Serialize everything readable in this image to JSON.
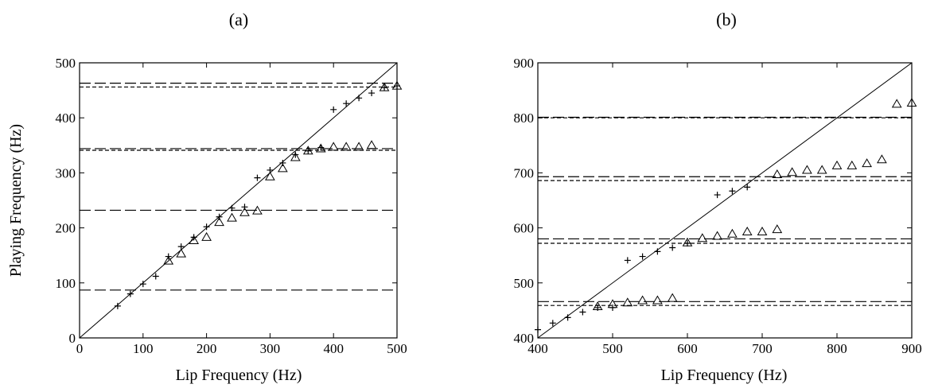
{
  "chart_data": [
    {
      "type": "scatter",
      "title": "(a)",
      "xlabel": "Lip Frequency (Hz)",
      "ylabel": "Playing  Frequency (Hz)",
      "xlim": [
        0,
        500
      ],
      "ylim": [
        0,
        500
      ],
      "xticks": [
        0,
        100,
        200,
        300,
        400,
        500
      ],
      "yticks": [
        0,
        100,
        200,
        300,
        400,
        500
      ],
      "grid": false,
      "reference_line": {
        "style": "solid",
        "from": [
          0,
          0
        ],
        "to": [
          500,
          500
        ]
      },
      "hlines": [
        {
          "y": 463,
          "style": "long-dash"
        },
        {
          "y": 456,
          "style": "short-dash"
        },
        {
          "y": 344,
          "style": "long-dash"
        },
        {
          "y": 341,
          "style": "short-dash"
        },
        {
          "y": 232,
          "style": "long-dash"
        },
        {
          "y": 87,
          "style": "long-dash"
        }
      ],
      "series": [
        {
          "marker": "plus",
          "points": [
            [
              60,
              58
            ],
            [
              80,
              80
            ],
            [
              100,
              98
            ],
            [
              120,
              112
            ],
            [
              140,
              148
            ],
            [
              160,
              166
            ],
            [
              180,
              183
            ],
            [
              200,
              202
            ],
            [
              220,
              220
            ],
            [
              240,
              236
            ],
            [
              260,
              238
            ],
            [
              280,
              291
            ],
            [
              300,
              305
            ],
            [
              320,
              318
            ],
            [
              340,
              333
            ],
            [
              360,
              340
            ],
            [
              380,
              346
            ],
            [
              400,
              415
            ],
            [
              420,
              426
            ],
            [
              440,
              436
            ],
            [
              460,
              445
            ],
            [
              480,
              455
            ],
            [
              500,
              458
            ]
          ]
        },
        {
          "marker": "triangle",
          "points": [
            [
              140,
              140
            ],
            [
              160,
              153
            ],
            [
              180,
              177
            ],
            [
              200,
              183
            ],
            [
              220,
              210
            ],
            [
              240,
              218
            ],
            [
              260,
              228
            ],
            [
              280,
              231
            ],
            [
              300,
              293
            ],
            [
              320,
              308
            ],
            [
              340,
              328
            ],
            [
              360,
              340
            ],
            [
              380,
              344
            ],
            [
              400,
              347
            ],
            [
              420,
              347
            ],
            [
              440,
              347
            ],
            [
              460,
              350
            ],
            [
              480,
              455
            ],
            [
              500,
              458
            ]
          ]
        }
      ]
    },
    {
      "type": "scatter",
      "title": "(b)",
      "xlabel": "Lip Frequency (Hz)",
      "ylabel": "",
      "xlim": [
        400,
        900
      ],
      "ylim": [
        400,
        900
      ],
      "xticks": [
        400,
        500,
        600,
        700,
        800,
        900
      ],
      "yticks": [
        400,
        500,
        600,
        700,
        800,
        900
      ],
      "grid": false,
      "reference_line": {
        "style": "solid",
        "from": [
          400,
          400
        ],
        "to": [
          900,
          900
        ]
      },
      "hlines": [
        {
          "y": 801,
          "style": "long-dash"
        },
        {
          "y": 800,
          "style": "short-dash"
        },
        {
          "y": 693,
          "style": "long-dash"
        },
        {
          "y": 686,
          "style": "short-dash"
        },
        {
          "y": 580,
          "style": "long-dash"
        },
        {
          "y": 572,
          "style": "short-dash"
        },
        {
          "y": 466,
          "style": "long-dash"
        },
        {
          "y": 459,
          "style": "short-dash"
        }
      ],
      "series": [
        {
          "marker": "plus",
          "points": [
            [
              400,
              415
            ],
            [
              420,
              427
            ],
            [
              440,
              437
            ],
            [
              460,
              447
            ],
            [
              480,
              455
            ],
            [
              500,
              455
            ],
            [
              520,
              541
            ],
            [
              540,
              548
            ],
            [
              560,
              557
            ],
            [
              580,
              564
            ],
            [
              600,
              572
            ],
            [
              640,
              660
            ],
            [
              660,
              667
            ],
            [
              680,
              674
            ]
          ]
        },
        {
          "marker": "triangle",
          "points": [
            [
              480,
              457
            ],
            [
              500,
              461
            ],
            [
              520,
              464
            ],
            [
              540,
              468
            ],
            [
              560,
              468
            ],
            [
              580,
              472
            ],
            [
              600,
              573
            ],
            [
              620,
              581
            ],
            [
              640,
              585
            ],
            [
              660,
              589
            ],
            [
              680,
              593
            ],
            [
              700,
              593
            ],
            [
              720,
              597
            ],
            [
              720,
              697
            ],
            [
              740,
              701
            ],
            [
              760,
              705
            ],
            [
              780,
              705
            ],
            [
              800,
              713
            ],
            [
              820,
              713
            ],
            [
              840,
              717
            ],
            [
              860,
              724
            ],
            [
              880,
              825
            ],
            [
              900,
              827
            ]
          ]
        }
      ]
    }
  ]
}
